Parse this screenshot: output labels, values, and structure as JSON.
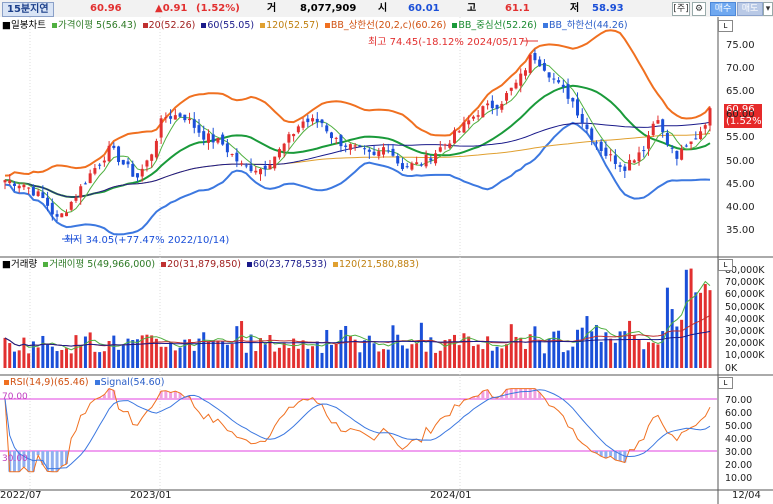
{
  "header": {
    "period": "15분지연",
    "price": "60.96",
    "change": "▲0.91",
    "change_pct": "(1.52%)",
    "volume_label": "거",
    "volume": "8,077,909",
    "open_label": "시",
    "open": "60.01",
    "high_label": "고",
    "high": "61.1",
    "low_label": "저",
    "low": "58.93",
    "btn_bracket": "[주]",
    "btn_gear": "⚙",
    "btn_buy": "매수",
    "btn_sell": "매도",
    "btn_down": "▾"
  },
  "colors": {
    "up": "#e23030",
    "down": "#1a4fd8",
    "bb_upper": "#f07020",
    "bb_mid": "#1a9a3a",
    "bb_lower": "#3c78e0",
    "ma5": "#50b040",
    "ma20": "#c03030",
    "ma60": "#1a1a8a",
    "ma120": "#e0a030",
    "rsi": "#f07020",
    "signal": "#3c78e0",
    "rsi_band": "#e040e0"
  },
  "price_legend": {
    "title": "■일봉차트",
    "ma5": "가격이평 5(56.43)",
    "ma20": "20(52.26)",
    "ma60": "60(55.05)",
    "ma120": "120(52.57)",
    "bb_upper": "BB_상한선(20,2,c)(60.26)",
    "bb_mid": "BB_중심선(52.26)",
    "bb_lower": "BB_하한선(44.26)"
  },
  "volume_legend": {
    "title": "■거래량",
    "ma5": "거래이평 5(49,966,000)",
    "ma20": "20(31,879,850)",
    "ma60": "60(23,778,533)",
    "ma120": "120(21,580,883)"
  },
  "rsi_legend": {
    "rsi": "RSI(14,9)(65.46)",
    "signal": "Signal(54.60)"
  },
  "annotations": {
    "high": "최고 74.45(-18.12% 2024/05/17)",
    "low": "최저 34.05(+77.47% 2022/10/14)",
    "current_price": "60.96",
    "current_pct": "(1.52%)"
  },
  "price_axis": [
    "75.00",
    "70.00",
    "65.00",
    "60.00",
    "55.00",
    "50.00",
    "45.00",
    "40.00",
    "35.00"
  ],
  "volume_axis": [
    "80,000K",
    "70,000K",
    "60,000K",
    "50,000K",
    "40,000K",
    "30,000K",
    "20,000K",
    "10,000K",
    "0K"
  ],
  "rsi_axis": [
    "70.00",
    "60.00",
    "50.00",
    "40.00",
    "30.00",
    "20.00",
    "10.00"
  ],
  "rsi_levels": {
    "upper": "70.00",
    "lower": "30.00"
  },
  "x_axis": [
    "2022/07",
    "2023/01",
    "2024/01",
    "12/04"
  ],
  "scale_buttons": [
    "L",
    "L",
    "L"
  ]
}
